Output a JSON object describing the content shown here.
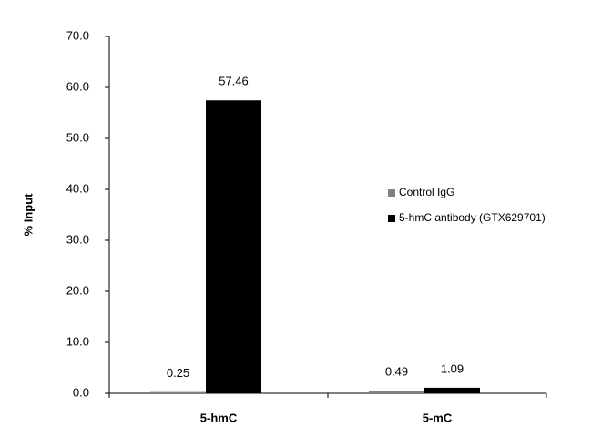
{
  "chart_data": {
    "type": "bar",
    "y_label": "% Input",
    "categories": [
      "5-hmC",
      "5-mC"
    ],
    "series": [
      {
        "name": "Control IgG",
        "color": "#808080",
        "values": [
          0.25,
          0.49
        ]
      },
      {
        "name": "5-hmC antibody (GTX629701)",
        "color": "#000000",
        "values": [
          57.46,
          1.09
        ]
      }
    ],
    "ylim": [
      0,
      70
    ],
    "yticks": [
      {
        "value": 0,
        "label": "0.0"
      },
      {
        "value": 10,
        "label": "10.0"
      },
      {
        "value": 20,
        "label": "20.0"
      },
      {
        "value": 30,
        "label": "30.0"
      },
      {
        "value": 40,
        "label": "40.0"
      },
      {
        "value": 50,
        "label": "50.0"
      },
      {
        "value": 60,
        "label": "60.0"
      },
      {
        "value": 70,
        "label": "70.0"
      }
    ],
    "legend": "right",
    "grid": false
  }
}
